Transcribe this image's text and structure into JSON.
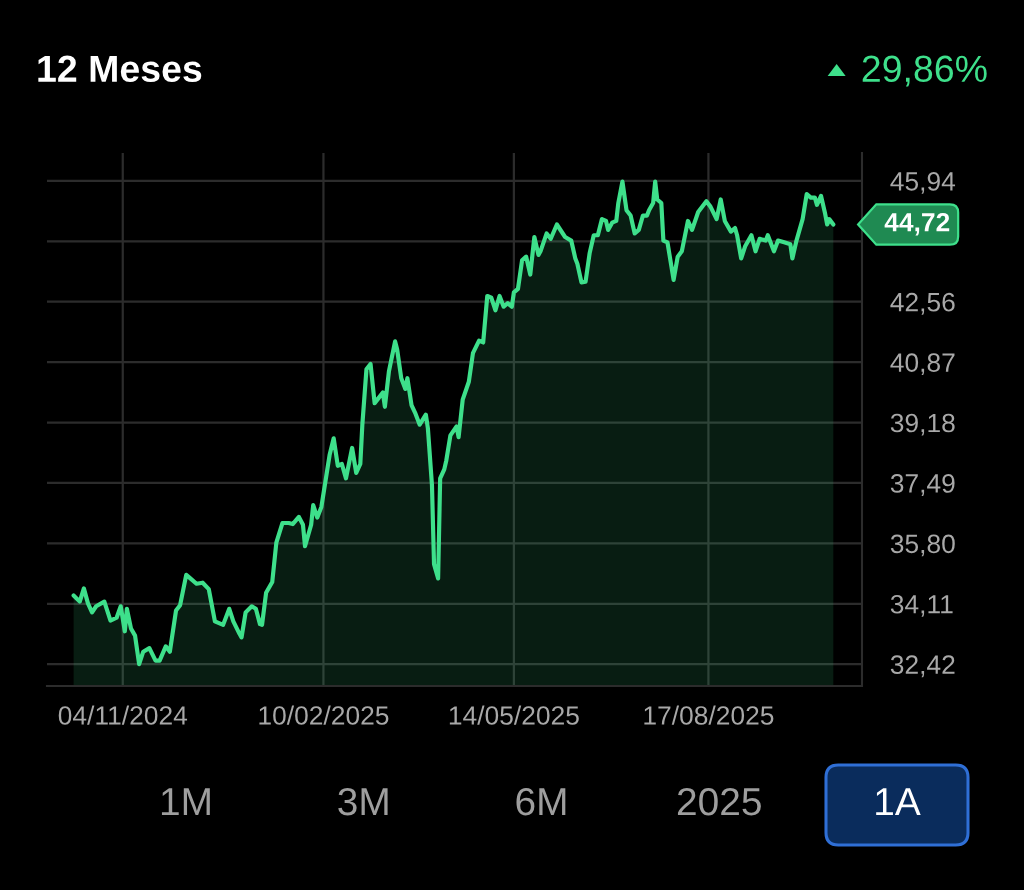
{
  "chart_data": {
    "type": "area",
    "title": "12 Meses",
    "subtitle": "29,86%",
    "x": [
      "2024-10-11",
      "2024-10-14",
      "2024-10-16",
      "2024-10-18",
      "2024-10-20",
      "2024-10-22",
      "2024-10-26",
      "2024-10-29",
      "2024-11-01",
      "2024-11-03",
      "2024-11-05",
      "2024-11-06",
      "2024-11-08",
      "2024-11-10",
      "2024-11-12",
      "2024-11-14",
      "2024-11-17",
      "2024-11-20",
      "2024-11-22",
      "2024-11-25",
      "2024-11-27",
      "2024-11-30",
      "2024-12-02",
      "2024-12-05",
      "2024-12-07",
      "2024-12-10",
      "2024-12-13",
      "2024-12-16",
      "2024-12-19",
      "2024-12-23",
      "2024-12-26",
      "2024-12-28",
      "2024-12-31",
      "2025-01-01",
      "2025-01-03",
      "2025-01-06",
      "2025-01-08",
      "2025-01-10",
      "2025-01-11",
      "2025-01-13",
      "2025-01-16",
      "2025-01-18",
      "2025-01-21",
      "2025-01-24",
      "2025-01-26",
      "2025-01-29",
      "2025-01-31",
      "2025-02-01",
      "2025-02-04",
      "2025-02-05",
      "2025-02-07",
      "2025-02-09",
      "2025-02-13",
      "2025-02-15",
      "2025-02-17",
      "2025-02-19",
      "2025-02-21",
      "2025-02-24",
      "2025-02-26",
      "2025-02-28",
      "2025-03-01",
      "2025-03-03",
      "2025-03-05",
      "2025-03-07",
      "2025-03-09",
      "2025-03-11",
      "2025-03-12",
      "2025-03-14",
      "2025-03-17",
      "2025-03-18",
      "2025-03-20",
      "2025-03-22",
      "2025-03-23",
      "2025-03-25",
      "2025-03-27",
      "2025-03-29",
      "2025-04-01",
      "2025-04-02",
      "2025-04-04",
      "2025-04-05",
      "2025-04-07",
      "2025-04-08",
      "2025-04-10",
      "2025-04-11",
      "2025-04-13",
      "2025-04-16",
      "2025-04-17",
      "2025-04-19",
      "2025-04-22",
      "2025-04-24",
      "2025-04-27",
      "2025-04-29",
      "2025-05-01",
      "2025-05-03",
      "2025-05-05",
      "2025-05-07",
      "2025-05-09",
      "2025-05-11",
      "2025-05-13",
      "2025-05-14",
      "2025-05-16",
      "2025-05-18",
      "2025-05-20",
      "2025-05-22",
      "2025-05-24",
      "2025-05-26",
      "2025-05-27",
      "2025-05-30",
      "2025-06-01",
      "2025-06-04",
      "2025-06-08",
      "2025-06-11",
      "2025-06-13",
      "2025-06-14",
      "2025-06-16",
      "2025-06-18",
      "2025-06-20",
      "2025-06-22",
      "2025-06-24",
      "2025-06-26",
      "2025-06-28",
      "2025-06-29",
      "2025-07-01",
      "2025-07-03",
      "2025-07-04",
      "2025-07-06",
      "2025-07-08",
      "2025-07-10",
      "2025-07-12",
      "2025-07-14",
      "2025-07-16",
      "2025-07-18",
      "2025-07-19",
      "2025-07-21",
      "2025-07-22",
      "2025-07-23",
      "2025-07-25",
      "2025-07-26",
      "2025-07-28",
      "2025-07-31",
      "2025-08-02",
      "2025-08-04",
      "2025-08-07",
      "2025-08-09",
      "2025-08-12",
      "2025-08-16",
      "2025-08-18",
      "2025-08-21",
      "2025-08-23",
      "2025-08-25",
      "2025-08-28",
      "2025-08-30",
      "2025-08-31",
      "2025-09-02",
      "2025-09-04",
      "2025-09-07",
      "2025-09-09",
      "2025-09-11",
      "2025-09-14",
      "2025-09-15",
      "2025-09-18",
      "2025-09-20",
      "2025-09-23",
      "2025-09-26",
      "2025-09-27",
      "2025-09-29",
      "2025-10-02",
      "2025-10-04",
      "2025-10-06",
      "2025-10-08",
      "2025-10-09",
      "2025-10-11",
      "2025-10-13",
      "2025-10-14",
      "2025-10-15",
      "2025-10-17"
    ],
    "series": [
      {
        "color": "#3ee08b",
        "values": [
          34.34,
          34.17,
          34.54,
          34.12,
          33.87,
          34.04,
          34.17,
          33.64,
          33.72,
          34.04,
          33.34,
          33.97,
          33.42,
          33.22,
          32.42,
          32.77,
          32.87,
          32.52,
          32.52,
          32.92,
          32.77,
          33.92,
          34.07,
          34.92,
          34.82,
          34.67,
          34.7,
          34.52,
          33.62,
          33.52,
          33.97,
          33.62,
          33.27,
          33.17,
          33.87,
          34.04,
          33.97,
          33.54,
          33.52,
          34.42,
          34.72,
          35.82,
          36.37,
          36.37,
          36.34,
          36.54,
          36.32,
          35.72,
          36.32,
          36.87,
          36.52,
          36.82,
          38.27,
          38.74,
          37.97,
          38.02,
          37.62,
          38.47,
          37.77,
          38.02,
          39.12,
          40.67,
          40.82,
          39.72,
          39.87,
          40.02,
          39.62,
          40.62,
          41.45,
          41.22,
          40.42,
          40.12,
          40.42,
          39.67,
          39.42,
          39.12,
          39.4,
          39.02,
          37.42,
          35.22,
          34.82,
          37.62,
          37.87,
          38.12,
          38.82,
          39.07,
          38.77,
          39.82,
          40.32,
          41.12,
          41.47,
          41.42,
          42.72,
          42.67,
          42.32,
          42.72,
          42.42,
          42.52,
          42.42,
          42.82,
          42.92,
          43.72,
          43.82,
          43.32,
          44.37,
          43.87,
          43.97,
          44.47,
          44.32,
          44.72,
          44.37,
          44.27,
          43.77,
          43.62,
          43.1,
          43.12,
          43.92,
          44.42,
          44.42,
          44.87,
          44.82,
          44.57,
          44.77,
          44.82,
          45.32,
          45.92,
          45.12,
          44.97,
          44.47,
          44.57,
          44.97,
          44.97,
          45.12,
          45.32,
          45.92,
          45.42,
          45.32,
          44.27,
          44.22,
          43.17,
          43.82,
          43.97,
          44.82,
          44.57,
          45.07,
          45.37,
          45.22,
          44.87,
          45.42,
          44.82,
          44.52,
          44.62,
          44.42,
          43.77,
          44.12,
          44.42,
          43.97,
          44.32,
          44.27,
          44.42,
          43.97,
          44.27,
          44.22,
          44.17,
          43.77,
          44.27,
          44.87,
          45.57,
          45.47,
          45.47,
          45.27,
          45.52,
          45.02,
          44.72,
          44.87,
          44.72
        ]
      }
    ],
    "xlim": [
      "2024-09-28",
      "2025-10-31"
    ],
    "xticks": [
      {
        "value": "2024-11-04",
        "label": "04/11/2024"
      },
      {
        "value": "2025-02-10",
        "label": "10/02/2025"
      },
      {
        "value": "2025-05-14",
        "label": "14/05/2025"
      },
      {
        "value": "2025-08-17",
        "label": "17/08/2025"
      }
    ],
    "ylim": [
      31.81,
      46.72
    ],
    "yticks": [
      {
        "value": 32.42,
        "label": "32,42"
      },
      {
        "value": 34.11,
        "label": "34,11"
      },
      {
        "value": 35.8,
        "label": "35,80"
      },
      {
        "value": 37.49,
        "label": "37,49"
      },
      {
        "value": 39.18,
        "label": "39,18"
      },
      {
        "value": 40.87,
        "label": "40,87"
      },
      {
        "value": 42.56,
        "label": "42,56"
      },
      {
        "value": 44.25,
        "label": null
      },
      {
        "value": 45.94,
        "label": "45,94"
      }
    ],
    "grid": true,
    "annotations": [
      "44,72",
      "1M",
      "3M",
      "6M",
      "2025",
      "1A"
    ]
  }
}
